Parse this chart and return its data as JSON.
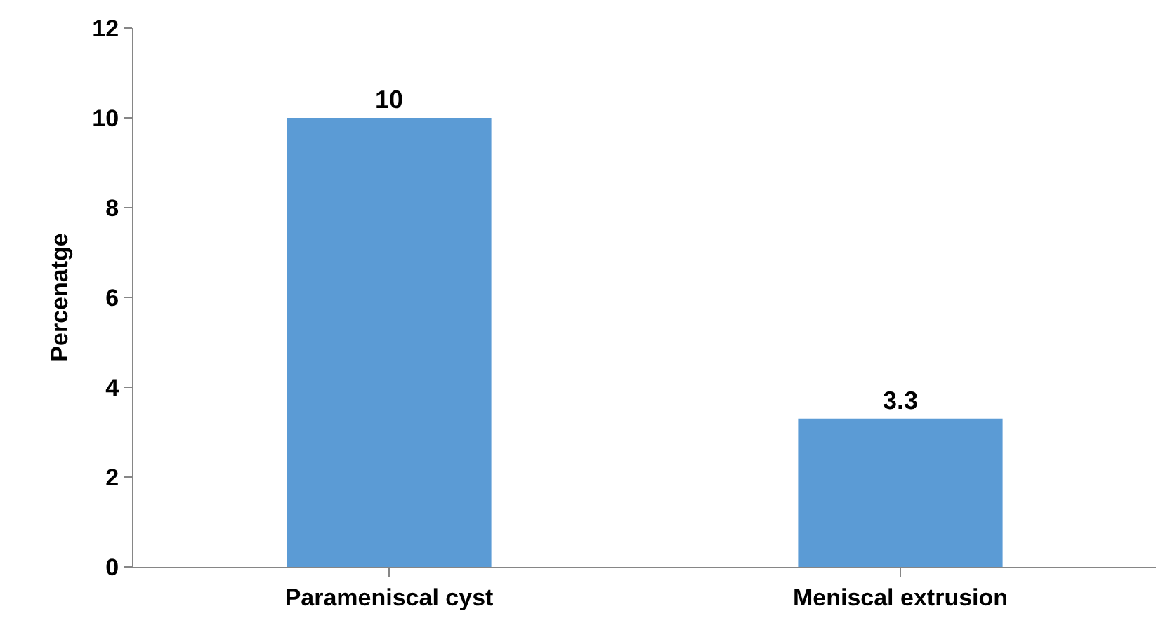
{
  "chart_data": {
    "type": "bar",
    "ylabel": "Percenatge",
    "categories": [
      "Parameniscal cyst",
      "Meniscal extrusion"
    ],
    "values": [
      10,
      3.3
    ],
    "color": "#5b9bd5",
    "ylim": [
      0,
      12
    ],
    "yticks": [
      0,
      2,
      4,
      6,
      8,
      10,
      12
    ],
    "data_labels": true
  }
}
